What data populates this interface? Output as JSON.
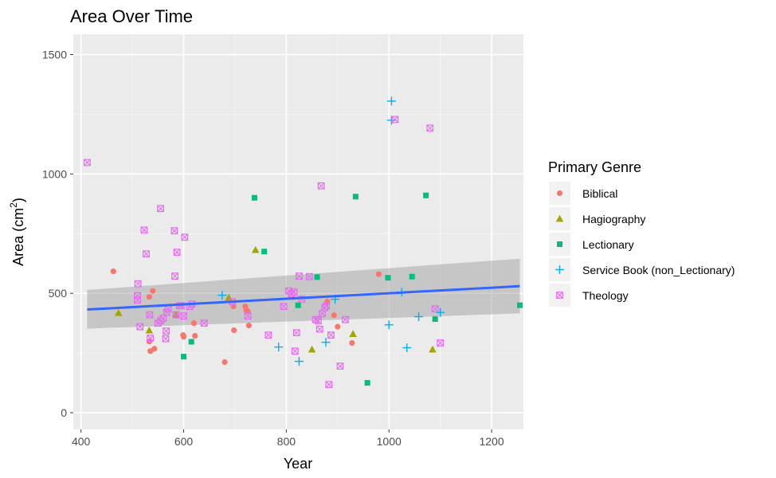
{
  "chart_data": {
    "type": "scatter",
    "title": "Area Over Time",
    "xlabel": "Year",
    "ylabel_main": "Area (cm",
    "ylabel_sup": "2",
    "ylabel_close": ")",
    "xlim": [
      385,
      1262
    ],
    "ylim": [
      -70,
      1585
    ],
    "xticks": [
      400,
      600,
      800,
      1000,
      1200
    ],
    "yticks": [
      0,
      500,
      1000,
      1500
    ],
    "grid": true,
    "legend": {
      "title": "Primary Genre",
      "position": "right"
    },
    "series": [
      {
        "name": "Biblical",
        "color": "#F8766D",
        "marker": "circle",
        "points": [
          [
            463,
            592
          ],
          [
            533,
            485
          ],
          [
            540,
            510
          ],
          [
            533,
            298
          ],
          [
            535,
            258
          ],
          [
            543,
            268
          ],
          [
            599,
            325
          ],
          [
            600,
            318
          ],
          [
            620,
            375
          ],
          [
            622,
            322
          ],
          [
            680,
            212
          ],
          [
            697,
            445
          ],
          [
            698,
            345
          ],
          [
            720,
            445
          ],
          [
            722,
            430
          ],
          [
            725,
            425
          ],
          [
            727,
            365
          ],
          [
            880,
            465
          ],
          [
            893,
            408
          ],
          [
            900,
            360
          ],
          [
            928,
            292
          ],
          [
            980,
            580
          ]
        ]
      },
      {
        "name": "Hagiography",
        "color": "#A3A500",
        "marker": "triangle",
        "points": [
          [
            473,
            418
          ],
          [
            533,
            345
          ],
          [
            585,
            410
          ],
          [
            688,
            482
          ],
          [
            740,
            682
          ],
          [
            850,
            265
          ],
          [
            930,
            330
          ],
          [
            1085,
            265
          ]
        ]
      },
      {
        "name": "Lectionary",
        "color": "#00BF7D",
        "marker": "square",
        "points": [
          [
            600,
            235
          ],
          [
            615,
            297
          ],
          [
            738,
            900
          ],
          [
            757,
            675
          ],
          [
            823,
            450
          ],
          [
            860,
            568
          ],
          [
            935,
            905
          ],
          [
            958,
            125
          ],
          [
            998,
            565
          ],
          [
            1045,
            570
          ],
          [
            1072,
            910
          ],
          [
            1090,
            392
          ],
          [
            1255,
            450
          ]
        ]
      },
      {
        "name": "Service Book (non_Lectionary)",
        "color": "#00B0F6",
        "marker": "plus",
        "points": [
          [
            675,
            492
          ],
          [
            785,
            275
          ],
          [
            825,
            215
          ],
          [
            877,
            295
          ],
          [
            895,
            475
          ],
          [
            1000,
            368
          ],
          [
            1005,
            1305
          ],
          [
            1005,
            1225
          ],
          [
            1025,
            505
          ],
          [
            1035,
            272
          ],
          [
            1058,
            402
          ],
          [
            1100,
            420
          ]
        ]
      },
      {
        "name": "Theology",
        "color": "#E76BF3",
        "marker": "boxx",
        "points": [
          [
            412,
            1048
          ],
          [
            510,
            490
          ],
          [
            510,
            472
          ],
          [
            511,
            540
          ],
          [
            515,
            360
          ],
          [
            523,
            765
          ],
          [
            527,
            665
          ],
          [
            534,
            410
          ],
          [
            535,
            312
          ],
          [
            550,
            375
          ],
          [
            555,
            855
          ],
          [
            555,
            385
          ],
          [
            560,
            395
          ],
          [
            565,
            310
          ],
          [
            566,
            342
          ],
          [
            567,
            420
          ],
          [
            570,
            435
          ],
          [
            582,
            762
          ],
          [
            583,
            572
          ],
          [
            585,
            410
          ],
          [
            587,
            672
          ],
          [
            592,
            448
          ],
          [
            595,
            448
          ],
          [
            600,
            405
          ],
          [
            602,
            735
          ],
          [
            612,
            445
          ],
          [
            616,
            455
          ],
          [
            640,
            375
          ],
          [
            695,
            465
          ],
          [
            725,
            405
          ],
          [
            765,
            325
          ],
          [
            795,
            445
          ],
          [
            805,
            510
          ],
          [
            810,
            498
          ],
          [
            815,
            505
          ],
          [
            817,
            258
          ],
          [
            820,
            335
          ],
          [
            825,
            572
          ],
          [
            830,
            475
          ],
          [
            845,
            570
          ],
          [
            857,
            390
          ],
          [
            862,
            385
          ],
          [
            865,
            350
          ],
          [
            868,
            950
          ],
          [
            870,
            415
          ],
          [
            875,
            440
          ],
          [
            878,
            448
          ],
          [
            883,
            118
          ],
          [
            887,
            325
          ],
          [
            905,
            195
          ],
          [
            915,
            390
          ],
          [
            1012,
            1228
          ],
          [
            1080,
            1192
          ],
          [
            1090,
            435
          ],
          [
            1100,
            292
          ]
        ]
      }
    ],
    "trend": {
      "label": "linear fit",
      "color": "#3366FF",
      "x": [
        412,
        1255
      ],
      "y": [
        432,
        530
      ],
      "band_lower": [
        352,
        416
      ],
      "band_upper": [
        514,
        645
      ]
    }
  }
}
